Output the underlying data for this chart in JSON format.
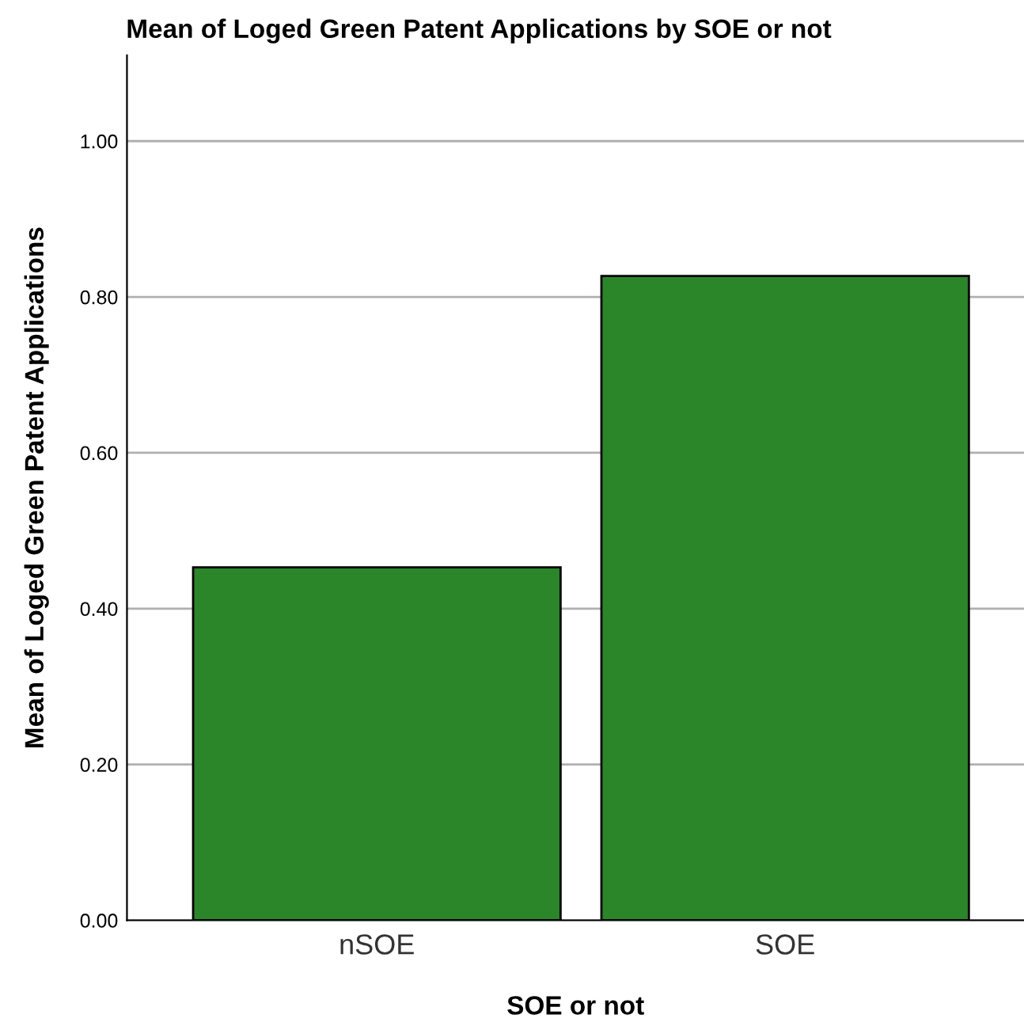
{
  "chart_data": {
    "type": "bar",
    "title": "Mean of Loged Green Patent Applications by SOE or not",
    "xlabel": "SOE or not",
    "ylabel": "Mean of Loged Green Patent Applications",
    "categories": [
      "nSOE",
      "SOE"
    ],
    "values": [
      0.453,
      0.827
    ],
    "color": "#2a8629",
    "ylim": [
      0,
      1.11
    ],
    "yticks": [
      {
        "value": 0,
        "label": "0.00"
      },
      {
        "value": 0.2,
        "label": "0.20"
      },
      {
        "value": 0.4,
        "label": "0.40"
      },
      {
        "value": 0.6,
        "label": "0.60"
      },
      {
        "value": 0.8,
        "label": "0.80"
      },
      {
        "value": 1.0,
        "label": "1.00"
      }
    ],
    "grid": "y",
    "legend": false
  }
}
